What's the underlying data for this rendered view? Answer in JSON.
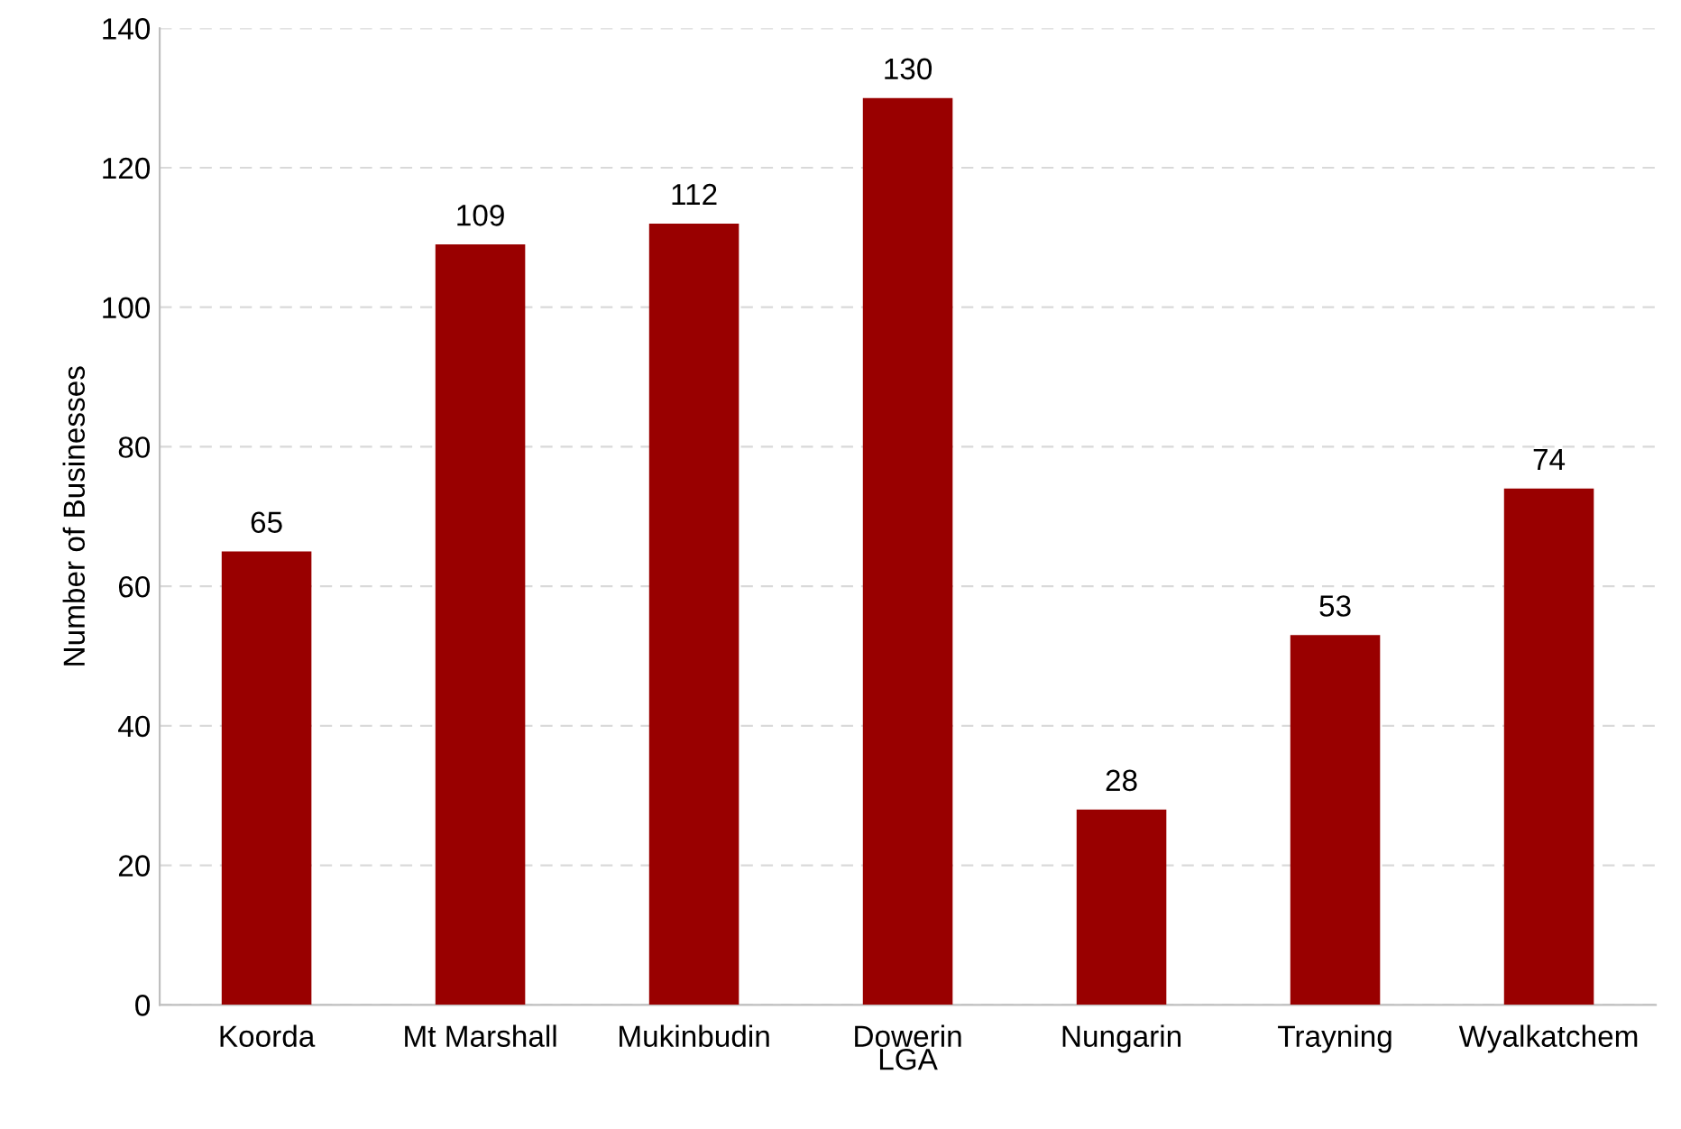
{
  "chart_data": {
    "type": "bar",
    "xlabel": "LGA",
    "ylabel": "Number of Businesses",
    "categories": [
      "Koorda",
      "Mt Marshall",
      "Mukinbudin",
      "Dowerin",
      "Nungarin",
      "Trayning",
      "Wyalkatchem"
    ],
    "values": [
      65,
      109,
      112,
      130,
      28,
      53,
      74
    ],
    "color": "#990000",
    "data_labels": true,
    "grid": "y",
    "ylim": [
      0,
      140
    ],
    "yticks": [
      0,
      20,
      40,
      60,
      80,
      100,
      120,
      140
    ]
  }
}
